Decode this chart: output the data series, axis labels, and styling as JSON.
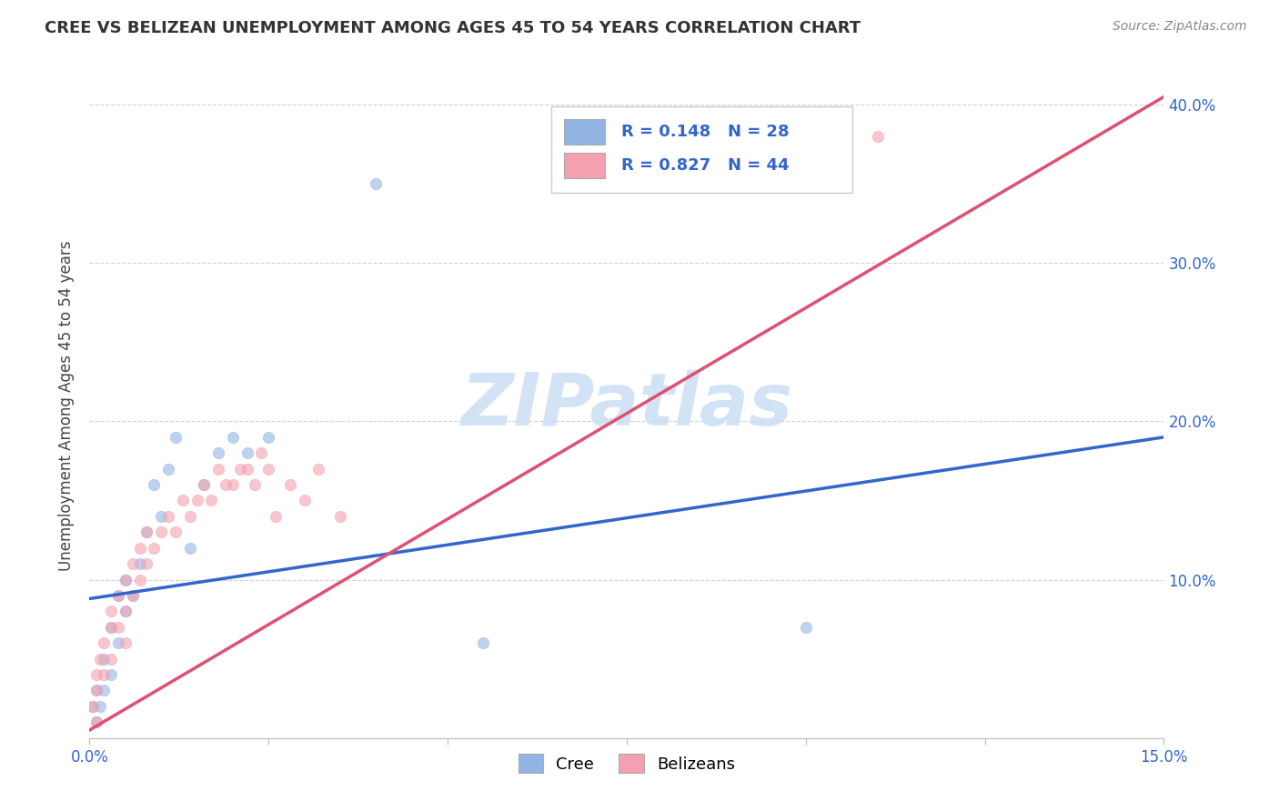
{
  "title": "CREE VS BELIZEAN UNEMPLOYMENT AMONG AGES 45 TO 54 YEARS CORRELATION CHART",
  "source": "Source: ZipAtlas.com",
  "ylabel": "Unemployment Among Ages 45 to 54 years",
  "xlim": [
    0.0,
    0.15
  ],
  "ylim": [
    0.0,
    0.42
  ],
  "xticks": [
    0.0,
    0.025,
    0.05,
    0.075,
    0.1,
    0.125,
    0.15
  ],
  "xticklabels": [
    "0.0%",
    "",
    "",
    "",
    "",
    "",
    "15.0%"
  ],
  "yticks_right": [
    0.0,
    0.1,
    0.2,
    0.3,
    0.4
  ],
  "yticklabels_right": [
    "",
    "10.0%",
    "20.0%",
    "30.0%",
    "40.0%"
  ],
  "cree_color": "#92b4e3",
  "belizean_color": "#f4a0b0",
  "cree_line_color": "#3366cc",
  "belizean_line_color": "#e05070",
  "watermark": "ZIPatlas",
  "cree_x": [
    0.0005,
    0.001,
    0.001,
    0.0015,
    0.002,
    0.002,
    0.003,
    0.003,
    0.004,
    0.004,
    0.005,
    0.005,
    0.006,
    0.007,
    0.008,
    0.009,
    0.01,
    0.011,
    0.012,
    0.014,
    0.016,
    0.018,
    0.02,
    0.022,
    0.025,
    0.04,
    0.055,
    0.1
  ],
  "cree_y": [
    0.02,
    0.01,
    0.03,
    0.02,
    0.03,
    0.05,
    0.04,
    0.07,
    0.06,
    0.09,
    0.08,
    0.1,
    0.09,
    0.11,
    0.13,
    0.16,
    0.14,
    0.17,
    0.19,
    0.12,
    0.16,
    0.18,
    0.19,
    0.18,
    0.19,
    0.35,
    0.06,
    0.07
  ],
  "belizean_x": [
    0.0005,
    0.001,
    0.001,
    0.001,
    0.0015,
    0.002,
    0.002,
    0.003,
    0.003,
    0.003,
    0.004,
    0.004,
    0.005,
    0.005,
    0.005,
    0.006,
    0.006,
    0.007,
    0.007,
    0.008,
    0.008,
    0.009,
    0.01,
    0.011,
    0.012,
    0.013,
    0.014,
    0.015,
    0.016,
    0.017,
    0.018,
    0.019,
    0.02,
    0.021,
    0.022,
    0.023,
    0.024,
    0.025,
    0.026,
    0.028,
    0.03,
    0.032,
    0.035,
    0.11
  ],
  "belizean_y": [
    0.02,
    0.01,
    0.03,
    0.04,
    0.05,
    0.04,
    0.06,
    0.05,
    0.07,
    0.08,
    0.07,
    0.09,
    0.08,
    0.06,
    0.1,
    0.09,
    0.11,
    0.1,
    0.12,
    0.11,
    0.13,
    0.12,
    0.13,
    0.14,
    0.13,
    0.15,
    0.14,
    0.15,
    0.16,
    0.15,
    0.17,
    0.16,
    0.16,
    0.17,
    0.17,
    0.16,
    0.18,
    0.17,
    0.14,
    0.16,
    0.15,
    0.17,
    0.14,
    0.38
  ],
  "cree_line_x": [
    0.0,
    0.15
  ],
  "cree_line_y": [
    0.088,
    0.19
  ],
  "belizean_line_x": [
    0.0,
    0.15
  ],
  "belizean_line_y": [
    0.005,
    0.405
  ]
}
